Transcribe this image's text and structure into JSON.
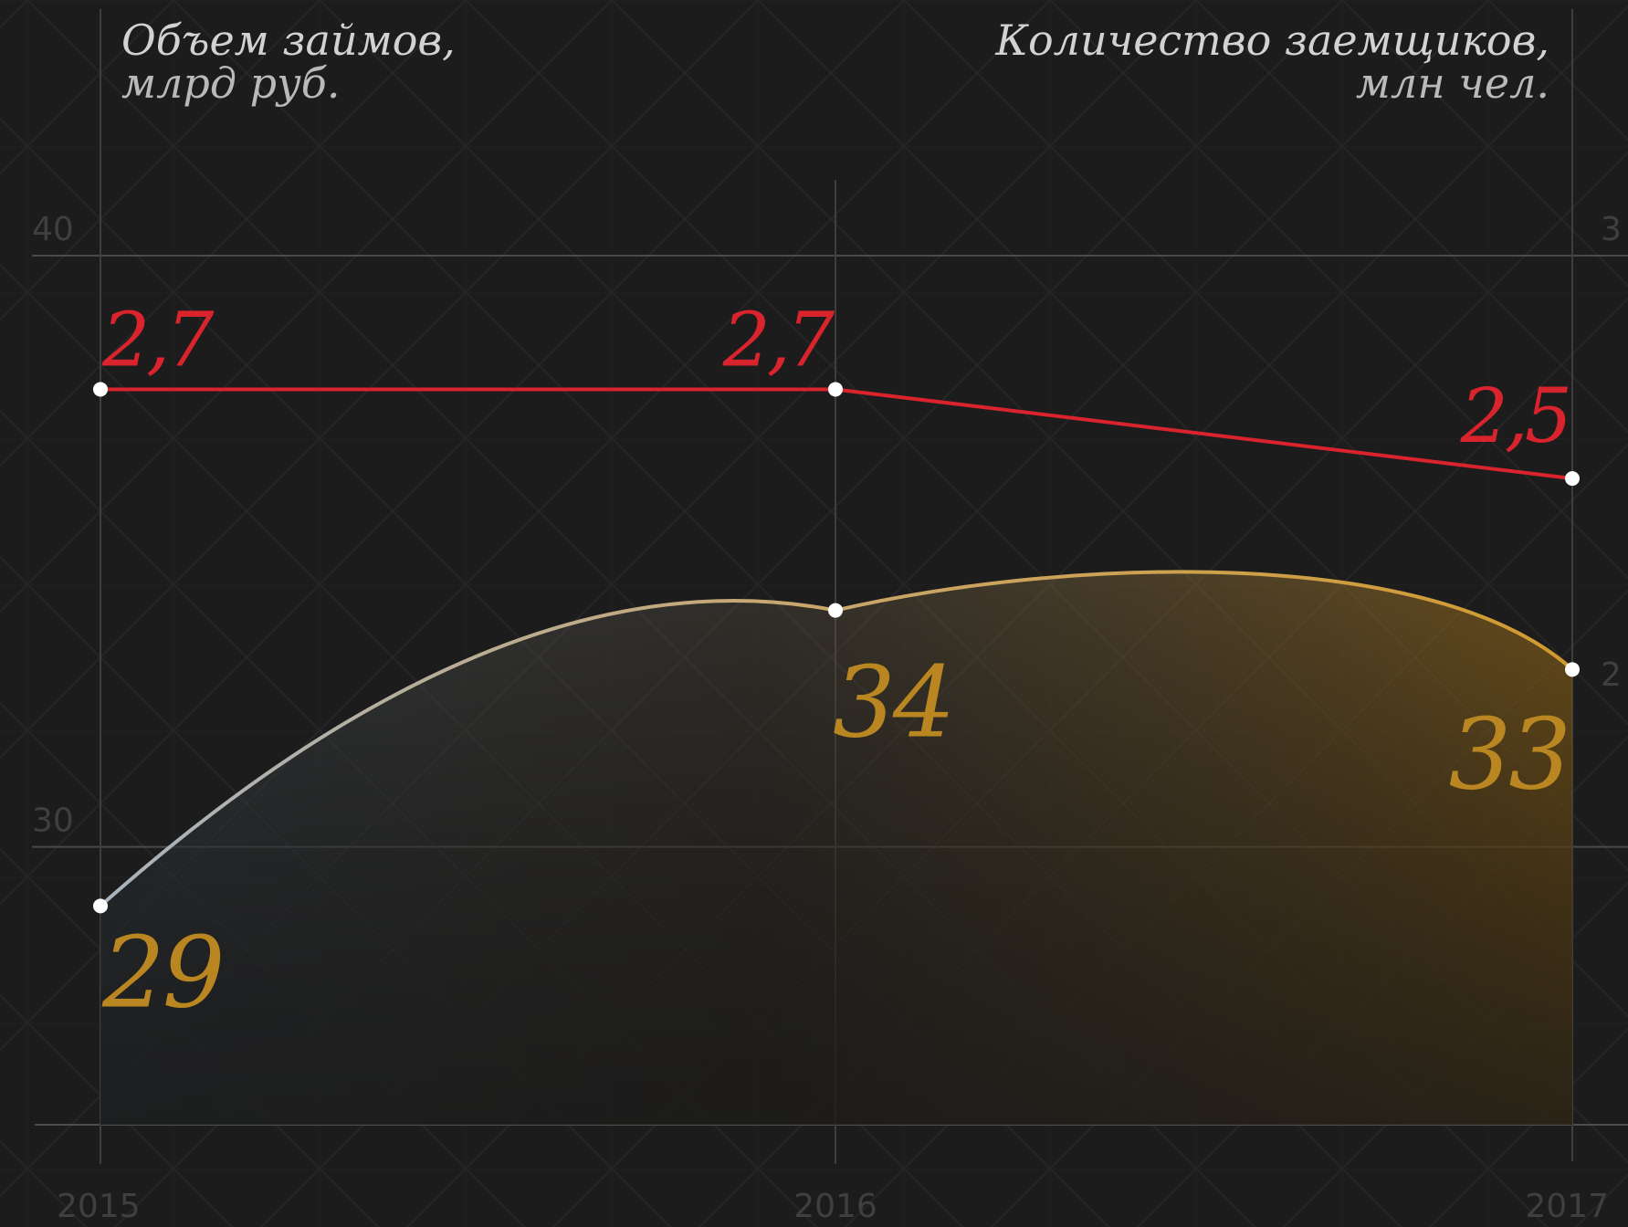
{
  "chart_data": {
    "type": "line",
    "x": [
      "2015",
      "2016",
      "2017"
    ],
    "left_axis": {
      "title": "Объем займов,",
      "unit": "млрд руб.",
      "ticks": [
        "40",
        "30"
      ],
      "range": [
        25.3,
        40
      ]
    },
    "right_axis": {
      "title": "Количество заемщиков,",
      "unit": "млн чел.",
      "ticks": [
        "3",
        "2"
      ],
      "range": [
        1.05,
        3
      ]
    },
    "series": [
      {
        "axis": "left",
        "chart": "area",
        "values": [
          29,
          34,
          33
        ],
        "labels": [
          "29",
          "34",
          "33"
        ],
        "color": "#b98621"
      },
      {
        "axis": "right",
        "chart": "line",
        "values": [
          2.7,
          2.7,
          2.5
        ],
        "labels": [
          "2,7",
          "2,7",
          "2,5"
        ],
        "color": "#d9232d"
      }
    ],
    "grid": true,
    "legend": "none"
  }
}
